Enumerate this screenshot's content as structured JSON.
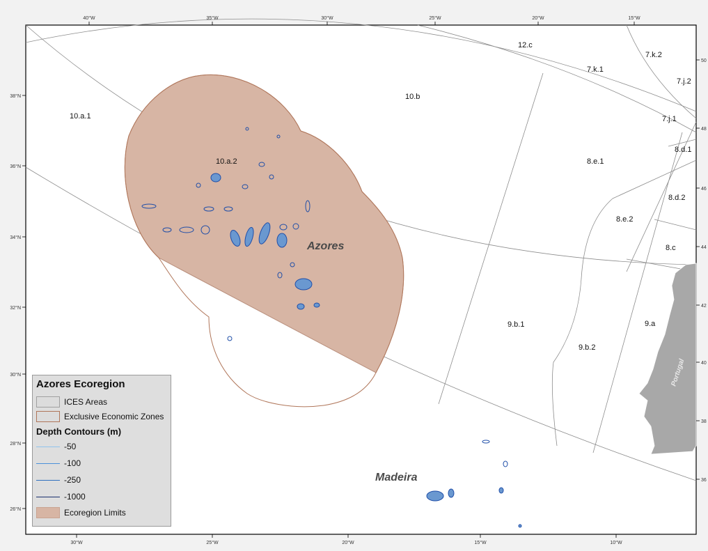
{
  "ticks": {
    "top_lon": [
      "40°W",
      "35°W",
      "30°W",
      "25°W",
      "20°W",
      "15°W"
    ],
    "bottom_lon": [
      "30°W",
      "25°W",
      "20°W",
      "15°W",
      "10°W"
    ],
    "left_lat": [
      "38°N",
      "36°N",
      "34°N",
      "32°N",
      "30°N",
      "28°N",
      "26°N"
    ],
    "right_lat": [
      "50",
      "48",
      "46",
      "44",
      "42",
      "40",
      "38",
      "36"
    ]
  },
  "areas": [
    "12.c",
    "7.k.2",
    "7.k.1",
    "7.j.2",
    "10.b",
    "10.a.1",
    "7.j.1",
    "8.d.1",
    "10.a.2",
    "8.e.1",
    "8.d.2",
    "8.e.2",
    "8.c",
    "9.b.1",
    "9.a",
    "9.b.2"
  ],
  "places": {
    "azores": "Azores",
    "madeira": "Madeira",
    "portugal": "Portugal"
  },
  "legend": {
    "title": "Azores Ecoregion",
    "ices": "ICES Areas",
    "eez": "Exclusive Economic Zones",
    "depth_title": "Depth Contours (m)",
    "depth": [
      {
        "label": "-50",
        "color": "#8fc3ee"
      },
      {
        "label": "-100",
        "color": "#4a90d9"
      },
      {
        "label": "-250",
        "color": "#2f6fbf"
      },
      {
        "label": "-1000",
        "color": "#1a2f6e"
      }
    ],
    "eco": "Ecoregion Limits"
  },
  "colors": {
    "ecoregion_fill": "#d7b5a4",
    "eez_line": "#b0765a",
    "ices_line": "#8c8c8c",
    "land": "#a8a8a8",
    "contour": "#1f4ea8"
  }
}
